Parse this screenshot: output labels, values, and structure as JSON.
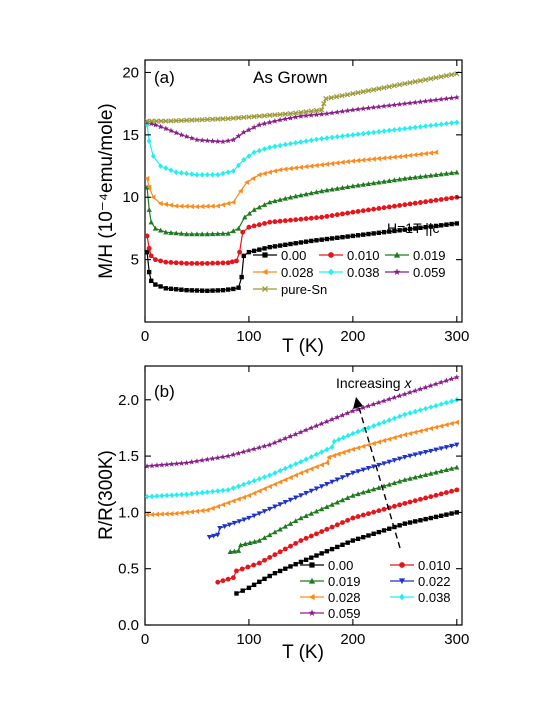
{
  "colors": {
    "black": "#000000",
    "red": "#e8141b",
    "green": "#1f7a1f",
    "orange": "#ff8a1c",
    "cyan": "#1ff0f0",
    "purple": "#8a1f8a",
    "olive": "#9c9a3a",
    "blue": "#1f33cc"
  },
  "chart_data": [
    {
      "type": "scatter",
      "panel_label": "(a)",
      "title": "As Grown",
      "annotation": "H=1T ||c",
      "xlabel": "T (K)",
      "ylabel": "M/H (10⁻⁴emu/mole)",
      "xlim": [
        0,
        305
      ],
      "ylim": [
        0,
        21
      ],
      "xticks": [
        0,
        100,
        200,
        300
      ],
      "yticks": [
        5,
        10,
        15,
        20
      ],
      "xtick_labels": [
        "0",
        "100",
        "200",
        "300"
      ],
      "ytick_labels": [
        "5",
        "10",
        "15",
        "20"
      ],
      "legend_position": "bottom-right",
      "series": [
        {
          "name": "0.00",
          "color": "black",
          "marker": "square",
          "points": [
            [
              2,
              5.6
            ],
            [
              4,
              4.0
            ],
            [
              6,
              3.3
            ],
            [
              10,
              3.0
            ],
            [
              20,
              2.7
            ],
            [
              40,
              2.55
            ],
            [
              60,
              2.5
            ],
            [
              75,
              2.55
            ],
            [
              85,
              2.65
            ],
            [
              90,
              2.75
            ],
            [
              93,
              3.6
            ],
            [
              95,
              5.3
            ],
            [
              100,
              5.6
            ],
            [
              120,
              6.0
            ],
            [
              160,
              6.5
            ],
            [
              200,
              6.9
            ],
            [
              250,
              7.4
            ],
            [
              300,
              7.9
            ]
          ]
        },
        {
          "name": "0.010",
          "color": "red",
          "marker": "circle",
          "points": [
            [
              2,
              6.9
            ],
            [
              4,
              5.9
            ],
            [
              6,
              5.3
            ],
            [
              10,
              5.0
            ],
            [
              20,
              4.8
            ],
            [
              40,
              4.7
            ],
            [
              60,
              4.7
            ],
            [
              80,
              4.75
            ],
            [
              88,
              4.9
            ],
            [
              91,
              5.6
            ],
            [
              94,
              7.2
            ],
            [
              100,
              7.6
            ],
            [
              120,
              8.0
            ],
            [
              170,
              8.4
            ],
            [
              200,
              8.8
            ],
            [
              250,
              9.4
            ],
            [
              300,
              10.0
            ]
          ]
        },
        {
          "name": "0.019",
          "color": "green",
          "marker": "triangle-up",
          "points": [
            [
              2,
              10.8
            ],
            [
              4,
              9.0
            ],
            [
              6,
              8.0
            ],
            [
              10,
              7.5
            ],
            [
              20,
              7.2
            ],
            [
              40,
              7.05
            ],
            [
              60,
              7.05
            ],
            [
              80,
              7.1
            ],
            [
              90,
              7.5
            ],
            [
              96,
              8.4
            ],
            [
              105,
              9.0
            ],
            [
              120,
              9.6
            ],
            [
              140,
              10.0
            ],
            [
              170,
              10.5
            ],
            [
              200,
              10.9
            ],
            [
              250,
              11.5
            ],
            [
              300,
              12.0
            ]
          ]
        },
        {
          "name": "0.028",
          "color": "orange",
          "marker": "triangle-left",
          "points": [
            [
              2,
              11.5
            ],
            [
              4,
              10.8
            ],
            [
              8,
              10.0
            ],
            [
              15,
              9.5
            ],
            [
              30,
              9.3
            ],
            [
              50,
              9.25
            ],
            [
              70,
              9.3
            ],
            [
              85,
              9.6
            ],
            [
              92,
              10.5
            ],
            [
              98,
              11.2
            ],
            [
              110,
              11.8
            ],
            [
              130,
              12.2
            ],
            [
              170,
              12.6
            ],
            [
              200,
              12.9
            ],
            [
              250,
              13.3
            ],
            [
              280,
              13.6
            ]
          ]
        },
        {
          "name": "0.038",
          "color": "cyan",
          "marker": "diamond",
          "points": [
            [
              2,
              15.8
            ],
            [
              4,
              14.5
            ],
            [
              8,
              13.3
            ],
            [
              15,
              12.5
            ],
            [
              30,
              12.0
            ],
            [
              50,
              11.8
            ],
            [
              70,
              11.8
            ],
            [
              85,
              12.1
            ],
            [
              95,
              13.0
            ],
            [
              105,
              13.6
            ],
            [
              120,
              14.0
            ],
            [
              140,
              14.3
            ],
            [
              170,
              14.7
            ],
            [
              200,
              15.0
            ],
            [
              250,
              15.5
            ],
            [
              300,
              16.0
            ]
          ]
        },
        {
          "name": "0.059",
          "color": "purple",
          "marker": "star",
          "points": [
            [
              2,
              16.0
            ],
            [
              10,
              15.8
            ],
            [
              20,
              15.5
            ],
            [
              35,
              15.0
            ],
            [
              50,
              14.6
            ],
            [
              65,
              14.5
            ],
            [
              75,
              14.45
            ],
            [
              85,
              14.6
            ],
            [
              95,
              15.2
            ],
            [
              110,
              15.8
            ],
            [
              130,
              16.2
            ],
            [
              150,
              16.5
            ],
            [
              175,
              16.7
            ],
            [
              200,
              17.0
            ],
            [
              250,
              17.5
            ],
            [
              300,
              18.0
            ]
          ]
        },
        {
          "name": "pure-Sn",
          "color": "olive",
          "marker": "x",
          "points": [
            [
              2,
              16.1
            ],
            [
              20,
              16.1
            ],
            [
              50,
              16.2
            ],
            [
              80,
              16.3
            ],
            [
              110,
              16.5
            ],
            [
              140,
              16.7
            ],
            [
              160,
              16.9
            ],
            [
              170,
              17.0
            ],
            [
              172,
              17.5
            ],
            [
              174,
              17.9
            ],
            [
              200,
              18.3
            ],
            [
              250,
              19.1
            ],
            [
              300,
              19.9
            ]
          ]
        }
      ]
    },
    {
      "type": "scatter",
      "panel_label": "(b)",
      "annotation": "Increasing x",
      "xlabel": "T (K)",
      "ylabel": "R/R(300K)",
      "xlim": [
        0,
        305
      ],
      "ylim": [
        0,
        2.3
      ],
      "xticks": [
        0,
        100,
        200,
        300
      ],
      "yticks": [
        0.0,
        0.5,
        1.0,
        1.5,
        2.0
      ],
      "xtick_labels": [
        "0",
        "100",
        "200",
        "300"
      ],
      "ytick_labels": [
        "0.0",
        "0.5",
        "1.0",
        "1.5",
        "2.0"
      ],
      "legend_position": "bottom-right",
      "series": [
        {
          "name": "0.00",
          "color": "black",
          "marker": "square",
          "points": [
            [
              88,
              0.28
            ],
            [
              100,
              0.33
            ],
            [
              115,
              0.41
            ],
            [
              125,
              0.46
            ],
            [
              150,
              0.56
            ],
            [
              200,
              0.75
            ],
            [
              250,
              0.9
            ],
            [
              300,
              1.0
            ]
          ]
        },
        {
          "name": "0.010",
          "color": "red",
          "marker": "circle",
          "points": [
            [
              70,
              0.38
            ],
            [
              85,
              0.42
            ],
            [
              88,
              0.48
            ],
            [
              110,
              0.55
            ],
            [
              150,
              0.75
            ],
            [
              200,
              0.95
            ],
            [
              250,
              1.08
            ],
            [
              300,
              1.2
            ]
          ]
        },
        {
          "name": "0.019",
          "color": "green",
          "marker": "triangle-up",
          "points": [
            [
              82,
              0.65
            ],
            [
              90,
              0.66
            ],
            [
              92,
              0.71
            ],
            [
              110,
              0.75
            ],
            [
              150,
              0.95
            ],
            [
              200,
              1.15
            ],
            [
              250,
              1.29
            ],
            [
              300,
              1.4
            ]
          ]
        },
        {
          "name": "0.022",
          "color": "blue",
          "marker": "triangle-down",
          "points": [
            [
              62,
              0.78
            ],
            [
              70,
              0.8
            ],
            [
              72,
              0.86
            ],
            [
              100,
              0.95
            ],
            [
              150,
              1.15
            ],
            [
              200,
              1.35
            ],
            [
              250,
              1.49
            ],
            [
              300,
              1.6
            ]
          ]
        },
        {
          "name": "0.028",
          "color": "orange",
          "marker": "triangle-left",
          "points": [
            [
              2,
              0.98
            ],
            [
              30,
              0.99
            ],
            [
              60,
              1.02
            ],
            [
              100,
              1.15
            ],
            [
              150,
              1.35
            ],
            [
              175,
              1.44
            ],
            [
              177,
              1.49
            ],
            [
              200,
              1.56
            ],
            [
              250,
              1.69
            ],
            [
              300,
              1.8
            ]
          ]
        },
        {
          "name": "0.038",
          "color": "cyan",
          "marker": "diamond",
          "points": [
            [
              2,
              1.14
            ],
            [
              40,
              1.16
            ],
            [
              80,
              1.2
            ],
            [
              120,
              1.33
            ],
            [
              150,
              1.45
            ],
            [
              180,
              1.58
            ],
            [
              182,
              1.63
            ],
            [
              200,
              1.7
            ],
            [
              250,
              1.87
            ],
            [
              300,
              2.0
            ]
          ]
        },
        {
          "name": "0.059",
          "color": "purple",
          "marker": "star",
          "points": [
            [
              2,
              1.41
            ],
            [
              40,
              1.44
            ],
            [
              80,
              1.5
            ],
            [
              120,
              1.6
            ],
            [
              160,
              1.75
            ],
            [
              200,
              1.9
            ],
            [
              250,
              2.05
            ],
            [
              300,
              2.2
            ]
          ]
        }
      ]
    }
  ]
}
